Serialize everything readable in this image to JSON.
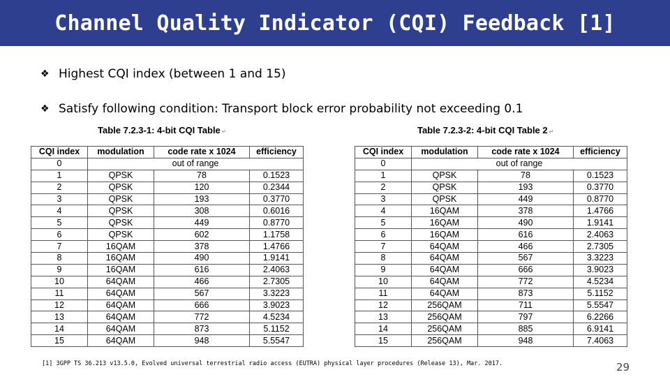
{
  "title": "Channel Quality Indicator (CQI) Feedback [1]",
  "bullets": [
    {
      "mark": "❖",
      "text": "Highest CQI index (between 1 and 15)"
    },
    {
      "mark": "❖",
      "text": "Satisfy following condition: Transport block error probability not exceeding 0.1"
    }
  ],
  "table1": {
    "caption": "Table 7.2.3-1: 4-bit CQI Table",
    "headers": [
      "CQI index",
      "modulation",
      "code rate x 1024",
      "efficiency"
    ],
    "out_of_range": "out of range",
    "rows": [
      [
        "1",
        "QPSK",
        "78",
        "0.1523"
      ],
      [
        "2",
        "QPSK",
        "120",
        "0.2344"
      ],
      [
        "3",
        "QPSK",
        "193",
        "0.3770"
      ],
      [
        "4",
        "QPSK",
        "308",
        "0.6016"
      ],
      [
        "5",
        "QPSK",
        "449",
        "0.8770"
      ],
      [
        "6",
        "QPSK",
        "602",
        "1.1758"
      ],
      [
        "7",
        "16QAM",
        "378",
        "1.4766"
      ],
      [
        "8",
        "16QAM",
        "490",
        "1.9141"
      ],
      [
        "9",
        "16QAM",
        "616",
        "2.4063"
      ],
      [
        "10",
        "64QAM",
        "466",
        "2.7305"
      ],
      [
        "11",
        "64QAM",
        "567",
        "3.3223"
      ],
      [
        "12",
        "64QAM",
        "666",
        "3.9023"
      ],
      [
        "13",
        "64QAM",
        "772",
        "4.5234"
      ],
      [
        "14",
        "64QAM",
        "873",
        "5.1152"
      ],
      [
        "15",
        "64QAM",
        "948",
        "5.5547"
      ]
    ]
  },
  "table2": {
    "caption": "Table 7.2.3-2: 4-bit CQI Table 2",
    "headers": [
      "CQI index",
      "modulation",
      "code rate x 1024",
      "efficiency"
    ],
    "out_of_range": "out of range",
    "rows": [
      [
        "1",
        "QPSK",
        "78",
        "0.1523"
      ],
      [
        "2",
        "QPSK",
        "193",
        "0.3770"
      ],
      [
        "3",
        "QPSK",
        "449",
        "0.8770"
      ],
      [
        "4",
        "16QAM",
        "378",
        "1.4766"
      ],
      [
        "5",
        "16QAM",
        "490",
        "1.9141"
      ],
      [
        "6",
        "16QAM",
        "616",
        "2.4063"
      ],
      [
        "7",
        "64QAM",
        "466",
        "2.7305"
      ],
      [
        "8",
        "64QAM",
        "567",
        "3.3223"
      ],
      [
        "9",
        "64QAM",
        "666",
        "3.9023"
      ],
      [
        "10",
        "64QAM",
        "772",
        "4.5234"
      ],
      [
        "11",
        "64QAM",
        "873",
        "5.1152"
      ],
      [
        "12",
        "256QAM",
        "711",
        "5.5547"
      ],
      [
        "13",
        "256QAM",
        "797",
        "6.2266"
      ],
      [
        "14",
        "256QAM",
        "885",
        "6.9141"
      ],
      [
        "15",
        "256QAM",
        "948",
        "7.4063"
      ]
    ]
  },
  "zero_index": "0",
  "footnote": "[1] 3GPP TS 36.213 v13.5.0, Evolved universal terrestrial radio access (EUTRA) physical layer procedures (Release 13), Mar. 2017.",
  "page_number": "29",
  "colors": {
    "title_bar": "#2e3f8f",
    "title_text": "#ffffff"
  }
}
